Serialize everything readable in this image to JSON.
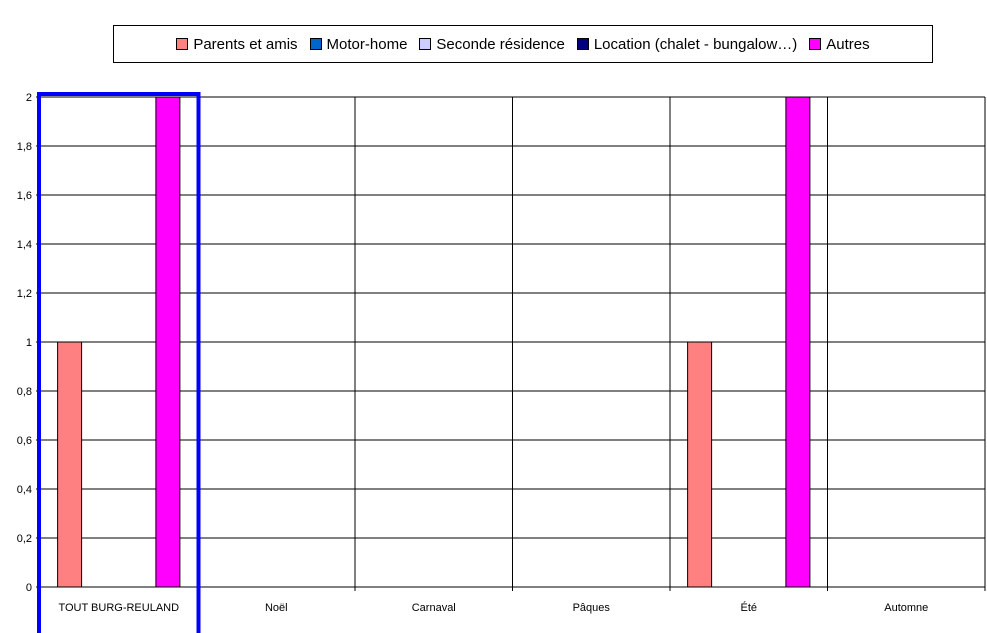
{
  "chart_data": {
    "type": "bar",
    "categories": [
      "TOUT BURG-REULAND",
      "Noël",
      "Carnaval",
      "Pâques",
      "Été",
      "Automne"
    ],
    "series": [
      {
        "name": "Parents et amis",
        "color": "#ff8080",
        "values": [
          1,
          0,
          0,
          0,
          1,
          0
        ]
      },
      {
        "name": "Motor-home",
        "color": "#0066cc",
        "values": [
          0,
          0,
          0,
          0,
          0,
          0
        ]
      },
      {
        "name": "Seconde résidence",
        "color": "#ccccff",
        "values": [
          0,
          0,
          0,
          0,
          0,
          0
        ]
      },
      {
        "name": "Location (chalet - bungalow…)",
        "color": "#000080",
        "values": [
          0,
          0,
          0,
          0,
          0,
          0
        ]
      },
      {
        "name": "Autres",
        "color": "#ff00ff",
        "values": [
          2,
          0,
          0,
          0,
          2,
          0
        ]
      }
    ],
    "ylim": [
      0,
      2
    ],
    "yticks": [
      "0",
      "0,2",
      "0,4",
      "0,6",
      "0,8",
      "1",
      "1,2",
      "1,4",
      "1,6",
      "1,8",
      "2"
    ],
    "grid": true,
    "legend_position": "top",
    "highlight_category": "TOUT BURG-REULAND",
    "highlight_color": "#0000ff"
  }
}
